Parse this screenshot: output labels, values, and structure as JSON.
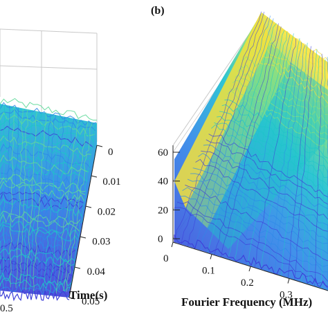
{
  "chart_data": [
    {
      "type": "surface",
      "panel_label": "",
      "x_axis": {
        "label": "",
        "ticks": [
          "0.5"
        ]
      },
      "y_axis": {
        "label": "Time(s)",
        "ticks": [
          "0",
          "0.01",
          "0.02",
          "0.03",
          "0.04",
          "0.05"
        ],
        "range": [
          0,
          0.05
        ]
      },
      "z_axis": {
        "label": "",
        "ticks": []
      },
      "grid": true,
      "colormap": "parula",
      "surface_description_colors": [
        "#3d3fd8",
        "#2e8ae8",
        "#1ec4c9",
        "#5fd99a"
      ]
    },
    {
      "type": "surface",
      "panel_label": "(b)",
      "x_axis": {
        "label": "Fourier Frequency (MHz)",
        "ticks": [
          "0",
          "0.1",
          "0.2",
          "0.3"
        ],
        "range": [
          0,
          0.4
        ]
      },
      "y_axis": {
        "label": "",
        "ticks": []
      },
      "z_axis": {
        "label": "",
        "ticks": [
          "0",
          "20",
          "40",
          "60"
        ],
        "range": [
          0,
          60
        ]
      },
      "grid": true,
      "colormap": "parula",
      "surface_description_colors": [
        "#3d3fd8",
        "#2e8ae8",
        "#1ec4c9",
        "#8ee07a",
        "#f5e23a"
      ]
    }
  ],
  "colors": {
    "axis": "#222222",
    "grid": "#c8c8c8",
    "low": "#3b3fd8",
    "mid_low": "#2c86e8",
    "mid": "#18bfcf",
    "mid_high": "#6ad88c",
    "high": "#f7e43b"
  }
}
